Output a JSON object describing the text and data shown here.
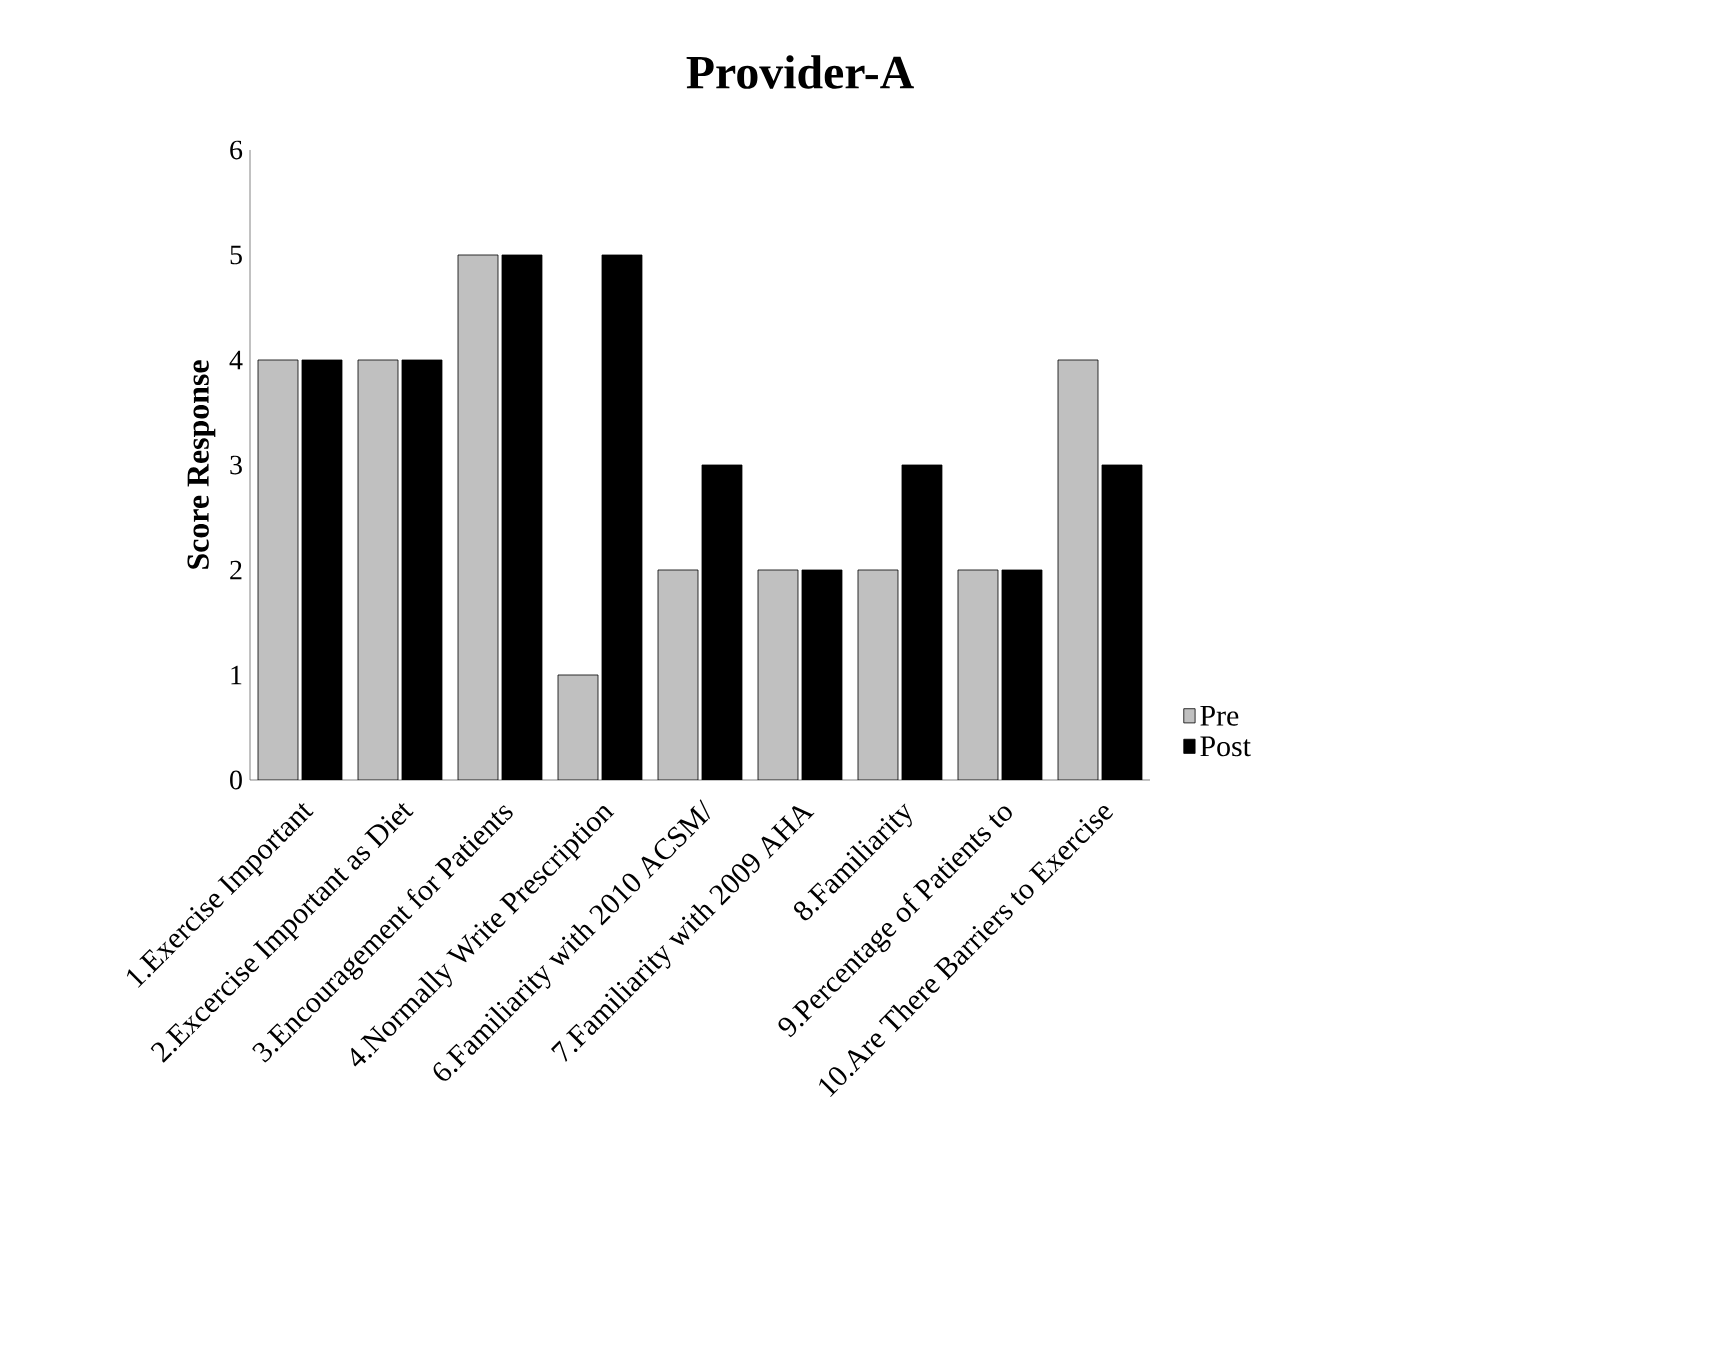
{
  "chart_data": {
    "type": "bar",
    "title": "Provider-A",
    "ylabel": "Score Response",
    "categories": [
      "1.Exercise Important",
      "2.Excercise Important as Diet",
      "3.Encouragement for Patients",
      "4.Normally Write Prescription",
      "6.Familiarity with 2010 ACSM/",
      "7.Familiarity with 2009 AHA",
      "8.Familiarity",
      "9.Percentage of Patients to",
      "10.Are There Barriers to Exercise"
    ],
    "series": [
      {
        "name": "Pre",
        "color": "#c0c0c0",
        "values": [
          4,
          4,
          5,
          1,
          2,
          2,
          2,
          2,
          4
        ]
      },
      {
        "name": "Post",
        "color": "#000000",
        "values": [
          4,
          4,
          5,
          5,
          3,
          2,
          3,
          2,
          3
        ]
      }
    ],
    "ylim": [
      0,
      6
    ],
    "yticks": [
      0,
      1,
      2,
      3,
      4,
      5,
      6
    ],
    "legend": "right",
    "grid": false
  }
}
